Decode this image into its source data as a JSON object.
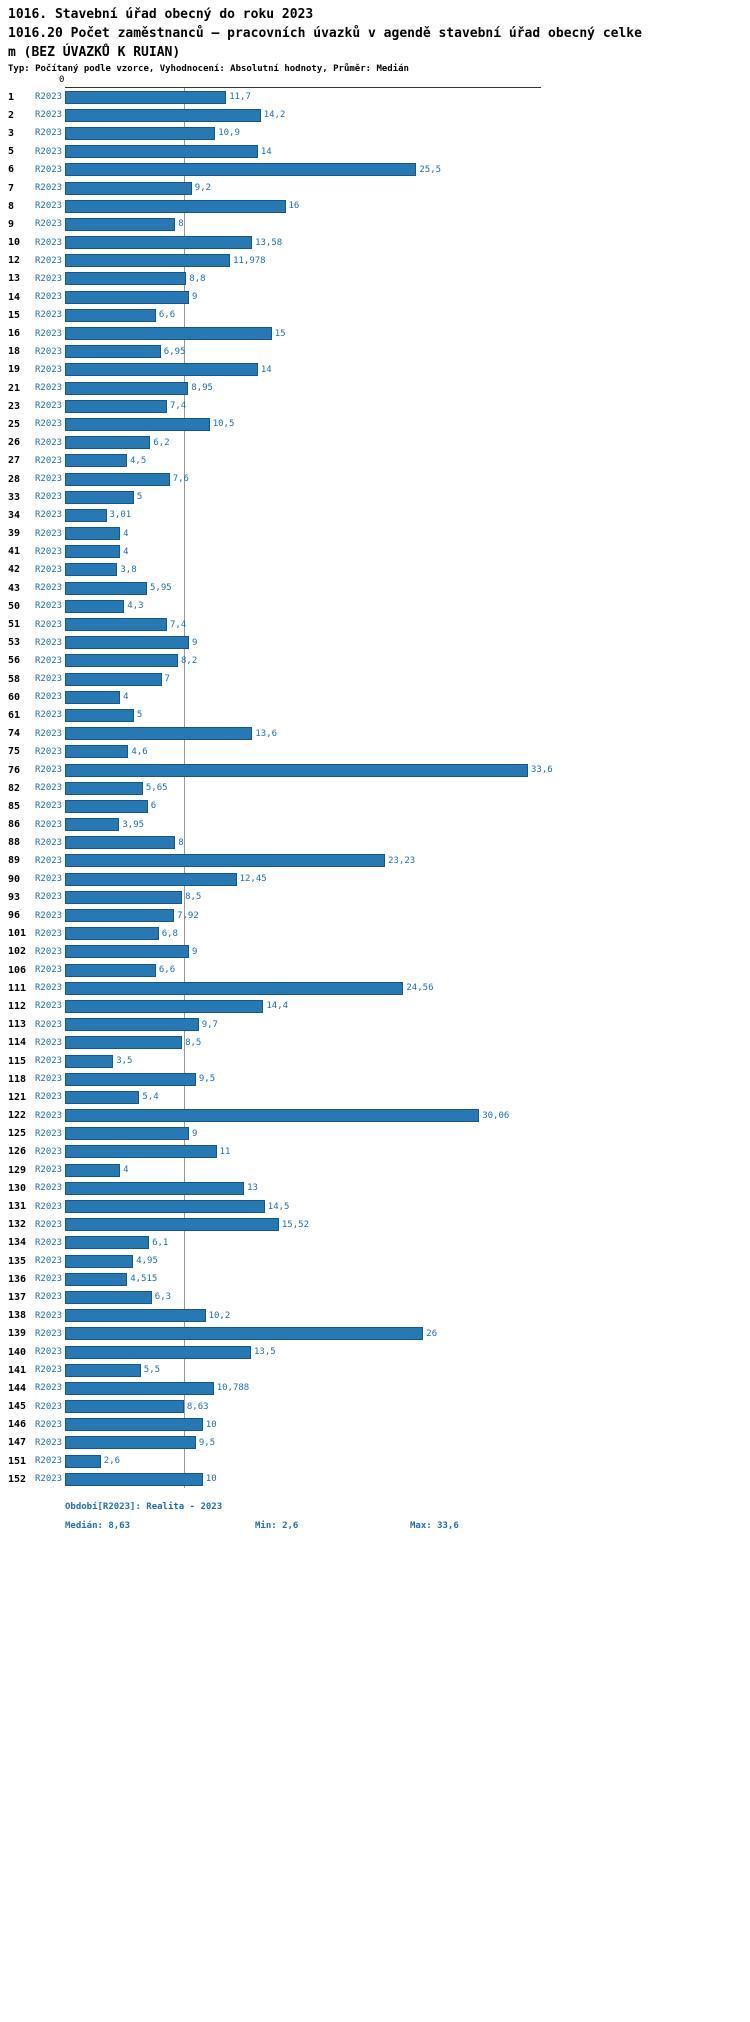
{
  "header": {
    "title": "1016. Stavební úřad obecný do roku 2023",
    "subtitle_line1": "1016.20 Počet zaměstnanců – pracovních úvazků v agendě stavební úřad obecný celke",
    "subtitle_line2": "m (BEZ ÚVAZKŮ K RUIAN)",
    "meta": "Typ: Počítaný podle vzorce, Vyhodnocení: Absolutní hodnoty, Průměr: Medián"
  },
  "chart_data": {
    "type": "bar",
    "orientation": "horizontal",
    "title": "1016. Stavební úřad obecný do roku 2023",
    "subtitle": "1016.20 Počet zaměstnanců – pracovních úvazků v agendě stavební úřad obecný celkem (BEZ ÚVAZKŮ K RUIAN)",
    "series_label": "R2023",
    "zero_label": "0",
    "xlim": [
      0,
      34.5
    ],
    "median": 8.63,
    "min": 2.6,
    "max": 33.6,
    "colors": {
      "bar": "#2878b4",
      "bar_border": "#17568c",
      "label": "#1f6dad",
      "median_line": "#999999",
      "axis_line": "#333333"
    },
    "rows": [
      {
        "id": "1",
        "value": 11.7,
        "display": "11,7"
      },
      {
        "id": "2",
        "value": 14.2,
        "display": "14,2"
      },
      {
        "id": "3",
        "value": 10.9,
        "display": "10,9"
      },
      {
        "id": "5",
        "value": 14,
        "display": "14"
      },
      {
        "id": "6",
        "value": 25.5,
        "display": "25,5"
      },
      {
        "id": "7",
        "value": 9.2,
        "display": "9,2"
      },
      {
        "id": "8",
        "value": 16,
        "display": "16"
      },
      {
        "id": "9",
        "value": 8,
        "display": "8"
      },
      {
        "id": "10",
        "value": 13.58,
        "display": "13,58"
      },
      {
        "id": "12",
        "value": 11.978,
        "display": "11,978"
      },
      {
        "id": "13",
        "value": 8.8,
        "display": "8,8"
      },
      {
        "id": "14",
        "value": 9,
        "display": "9"
      },
      {
        "id": "15",
        "value": 6.6,
        "display": "6,6"
      },
      {
        "id": "16",
        "value": 15,
        "display": "15"
      },
      {
        "id": "18",
        "value": 6.95,
        "display": "6,95"
      },
      {
        "id": "19",
        "value": 14,
        "display": "14"
      },
      {
        "id": "21",
        "value": 8.95,
        "display": "8,95"
      },
      {
        "id": "23",
        "value": 7.4,
        "display": "7,4"
      },
      {
        "id": "25",
        "value": 10.5,
        "display": "10,5"
      },
      {
        "id": "26",
        "value": 6.2,
        "display": "6,2"
      },
      {
        "id": "27",
        "value": 4.5,
        "display": "4,5"
      },
      {
        "id": "28",
        "value": 7.6,
        "display": "7,6"
      },
      {
        "id": "33",
        "value": 5,
        "display": "5"
      },
      {
        "id": "34",
        "value": 3.01,
        "display": "3,01"
      },
      {
        "id": "39",
        "value": 4,
        "display": "4"
      },
      {
        "id": "41",
        "value": 4,
        "display": "4"
      },
      {
        "id": "42",
        "value": 3.8,
        "display": "3,8"
      },
      {
        "id": "43",
        "value": 5.95,
        "display": "5,95"
      },
      {
        "id": "50",
        "value": 4.3,
        "display": "4,3"
      },
      {
        "id": "51",
        "value": 7.4,
        "display": "7,4"
      },
      {
        "id": "53",
        "value": 9,
        "display": "9"
      },
      {
        "id": "56",
        "value": 8.2,
        "display": "8,2"
      },
      {
        "id": "58",
        "value": 7,
        "display": "7"
      },
      {
        "id": "60",
        "value": 4,
        "display": "4"
      },
      {
        "id": "61",
        "value": 5,
        "display": "5"
      },
      {
        "id": "74",
        "value": 13.6,
        "display": "13,6"
      },
      {
        "id": "75",
        "value": 4.6,
        "display": "4,6"
      },
      {
        "id": "76",
        "value": 33.6,
        "display": "33,6"
      },
      {
        "id": "82",
        "value": 5.65,
        "display": "5,65"
      },
      {
        "id": "85",
        "value": 6,
        "display": "6"
      },
      {
        "id": "86",
        "value": 3.95,
        "display": "3,95"
      },
      {
        "id": "88",
        "value": 8,
        "display": "8"
      },
      {
        "id": "89",
        "value": 23.23,
        "display": "23,23"
      },
      {
        "id": "90",
        "value": 12.45,
        "display": "12,45"
      },
      {
        "id": "93",
        "value": 8.5,
        "display": "8,5"
      },
      {
        "id": "96",
        "value": 7.92,
        "display": "7,92"
      },
      {
        "id": "101",
        "value": 6.8,
        "display": "6,8"
      },
      {
        "id": "102",
        "value": 9,
        "display": "9"
      },
      {
        "id": "106",
        "value": 6.6,
        "display": "6,6"
      },
      {
        "id": "111",
        "value": 24.56,
        "display": "24,56"
      },
      {
        "id": "112",
        "value": 14.4,
        "display": "14,4"
      },
      {
        "id": "113",
        "value": 9.7,
        "display": "9,7"
      },
      {
        "id": "114",
        "value": 8.5,
        "display": "8,5"
      },
      {
        "id": "115",
        "value": 3.5,
        "display": "3,5"
      },
      {
        "id": "118",
        "value": 9.5,
        "display": "9,5"
      },
      {
        "id": "121",
        "value": 5.4,
        "display": "5,4"
      },
      {
        "id": "122",
        "value": 30.06,
        "display": "30,06"
      },
      {
        "id": "125",
        "value": 9,
        "display": "9"
      },
      {
        "id": "126",
        "value": 11,
        "display": "11"
      },
      {
        "id": "129",
        "value": 4,
        "display": "4"
      },
      {
        "id": "130",
        "value": 13,
        "display": "13"
      },
      {
        "id": "131",
        "value": 14.5,
        "display": "14,5"
      },
      {
        "id": "132",
        "value": 15.52,
        "display": "15,52"
      },
      {
        "id": "134",
        "value": 6.1,
        "display": "6,1"
      },
      {
        "id": "135",
        "value": 4.95,
        "display": "4,95"
      },
      {
        "id": "136",
        "value": 4.515,
        "display": "4,515"
      },
      {
        "id": "137",
        "value": 6.3,
        "display": "6,3"
      },
      {
        "id": "138",
        "value": 10.2,
        "display": "10,2"
      },
      {
        "id": "139",
        "value": 26,
        "display": "26"
      },
      {
        "id": "140",
        "value": 13.5,
        "display": "13,5"
      },
      {
        "id": "141",
        "value": 5.5,
        "display": "5,5"
      },
      {
        "id": "144",
        "value": 10.788,
        "display": "10,788"
      },
      {
        "id": "145",
        "value": 8.63,
        "display": "8,63"
      },
      {
        "id": "146",
        "value": 10,
        "display": "10"
      },
      {
        "id": "147",
        "value": 9.5,
        "display": "9,5"
      },
      {
        "id": "151",
        "value": 2.6,
        "display": "2,6"
      },
      {
        "id": "152",
        "value": 10,
        "display": "10"
      }
    ]
  },
  "footer": {
    "period": "Období[R2023]: Realita - 2023",
    "median": "Medián: 8,63",
    "min": "Min: 2,6",
    "max": "Max: 33,6"
  }
}
